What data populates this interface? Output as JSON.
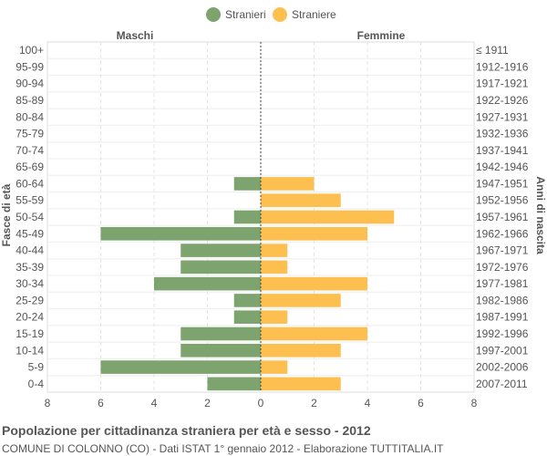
{
  "chart_data": {
    "type": "bar",
    "orientation": "horizontal",
    "title": "Popolazione per cittadinanza straniera per età e sesso - 2012",
    "subtitle": "COMUNE DI COLONNO (CO) - Dati ISTAT 1° gennaio 2012 - Elaborazione TUTTITALIA.IT",
    "left_header": "Maschi",
    "right_header": "Femmine",
    "ylabel_left": "Fasce di età",
    "ylabel_right": "Anni di nascita",
    "legend_position": "top-center",
    "grid": true,
    "xlim": [
      -8,
      8
    ],
    "x_ticks": [
      8,
      6,
      4,
      2,
      0,
      2,
      4,
      6,
      8
    ],
    "categories": [
      "100+",
      "95-99",
      "90-94",
      "85-89",
      "80-84",
      "75-79",
      "70-74",
      "65-69",
      "60-64",
      "55-59",
      "50-54",
      "45-49",
      "40-44",
      "35-39",
      "30-34",
      "25-29",
      "20-24",
      "15-19",
      "10-14",
      "5-9",
      "0-4"
    ],
    "birth_years": [
      "≤ 1911",
      "1912-1916",
      "1917-1921",
      "1922-1926",
      "1927-1931",
      "1932-1936",
      "1937-1941",
      "1942-1946",
      "1947-1951",
      "1952-1956",
      "1957-1961",
      "1962-1966",
      "1967-1971",
      "1972-1976",
      "1977-1981",
      "1982-1986",
      "1987-1991",
      "1992-1996",
      "1997-2001",
      "2002-2006",
      "2007-2011"
    ],
    "series": [
      {
        "name": "Stranieri",
        "color": "#7da36e",
        "side": "left",
        "values": [
          0,
          0,
          0,
          0,
          0,
          0,
          0,
          0,
          1,
          0,
          1,
          6,
          3,
          3,
          4,
          1,
          1,
          3,
          3,
          6,
          2
        ]
      },
      {
        "name": "Straniere",
        "color": "#fdbf4f",
        "side": "right",
        "values": [
          0,
          0,
          0,
          0,
          0,
          0,
          0,
          0,
          2,
          3,
          5,
          4,
          1,
          1,
          4,
          3,
          1,
          4,
          3,
          1,
          3
        ]
      }
    ]
  }
}
